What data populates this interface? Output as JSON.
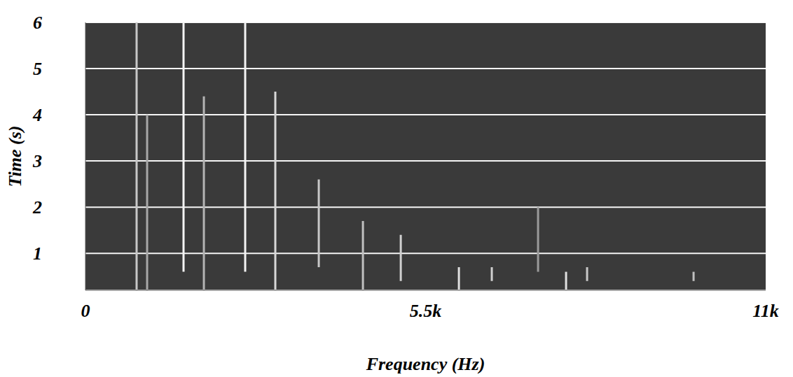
{
  "chart_data": {
    "type": "spectrogram",
    "xlabel": "Frequency (Hz)",
    "ylabel": "Time (s)",
    "xlim": [
      0,
      11000
    ],
    "xticks": [
      0,
      {
        "value": 5500,
        "label": "5.5k"
      },
      {
        "value": 11000,
        "label": "11k"
      }
    ],
    "ylim": [
      0.2,
      6
    ],
    "yticks": [
      1,
      2,
      3,
      4,
      5,
      6
    ],
    "grid": true,
    "color": "#3a3a3a",
    "lines": [
      {
        "x": 827,
        "y": [
          0.2,
          6
        ],
        "color": "#c8c8c8"
      },
      {
        "x": 997,
        "y": [
          0.2,
          4
        ],
        "color": "#a8a8a8"
      },
      {
        "x": 1586,
        "y": [
          0.6,
          6
        ],
        "color": "#f4f4f4"
      },
      {
        "x": 1915,
        "y": [
          0.2,
          4.4
        ],
        "color": "#b4b4b4"
      },
      {
        "x": 2583,
        "y": [
          0.6,
          6
        ],
        "color": "#f4f4f4"
      },
      {
        "x": 3070,
        "y": [
          0.2,
          4.5
        ],
        "color": "#d8d8d8"
      },
      {
        "x": 3773,
        "y": [
          0.7,
          2.6
        ],
        "color": "#c8c8c8"
      },
      {
        "x": 4487,
        "y": [
          0.2,
          1.7
        ],
        "color": "#c0c0c0"
      },
      {
        "x": 5099,
        "y": [
          0.4,
          1.4
        ],
        "color": "#d0d0d0"
      },
      {
        "x": 6039,
        "y": [
          0.2,
          0.7
        ],
        "color": "#e0e0e0"
      },
      {
        "x": 6571,
        "y": [
          0.4,
          0.7
        ],
        "color": "#d0d0d0"
      },
      {
        "x": 7319,
        "y": [
          0.6,
          2
        ],
        "color": "#9a9a9a"
      },
      {
        "x": 7772,
        "y": [
          0.2,
          0.6
        ],
        "color": "#e0e0e0"
      },
      {
        "x": 8112,
        "y": [
          0.4,
          0.7
        ],
        "color": "#c8c8c8"
      },
      {
        "x": 9834,
        "y": [
          0.4,
          0.6
        ],
        "color": "#c0c0c0"
      }
    ]
  }
}
